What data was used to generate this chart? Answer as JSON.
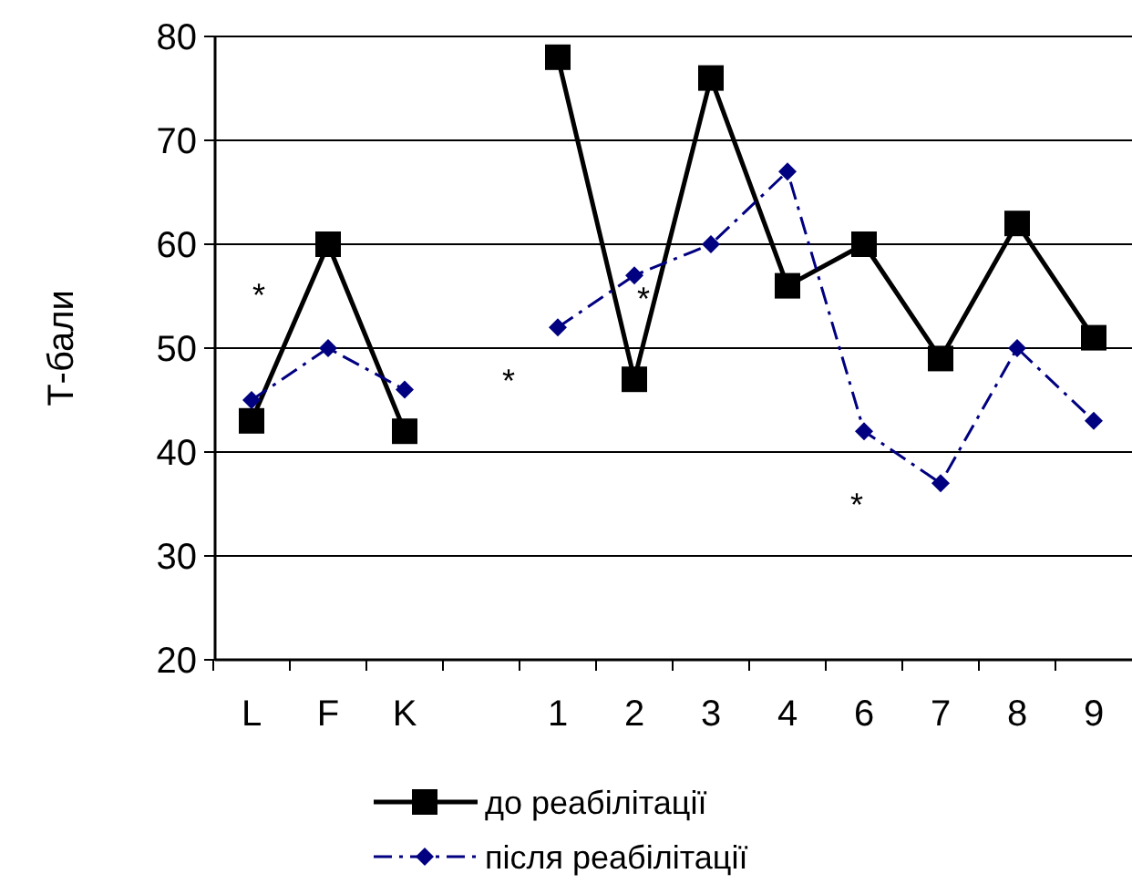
{
  "chart_data": {
    "type": "line",
    "ylabel": "Т-бали",
    "categories": [
      "L",
      "F",
      "K",
      null,
      "1",
      "2",
      "3",
      "4",
      "6",
      "7",
      "8",
      "9"
    ],
    "series": [
      {
        "name": "до реабілітації",
        "color": "#000000",
        "marker": "square",
        "line_style": "solid",
        "values": [
          43,
          60,
          42,
          null,
          78,
          47,
          76,
          56,
          60,
          49,
          62,
          51
        ]
      },
      {
        "name": "після реабілітації",
        "color": "#000080",
        "marker": "diamond",
        "line_style": "dashed",
        "values": [
          45,
          50,
          46,
          null,
          52,
          57,
          60,
          67,
          42,
          37,
          50,
          43
        ]
      }
    ],
    "ylim": [
      20,
      80
    ],
    "yticks": [
      20,
      30,
      40,
      50,
      60,
      70,
      80
    ],
    "grid": "y",
    "legend": "bottom",
    "annotations": [
      "*",
      "*",
      "*",
      "*"
    ]
  }
}
